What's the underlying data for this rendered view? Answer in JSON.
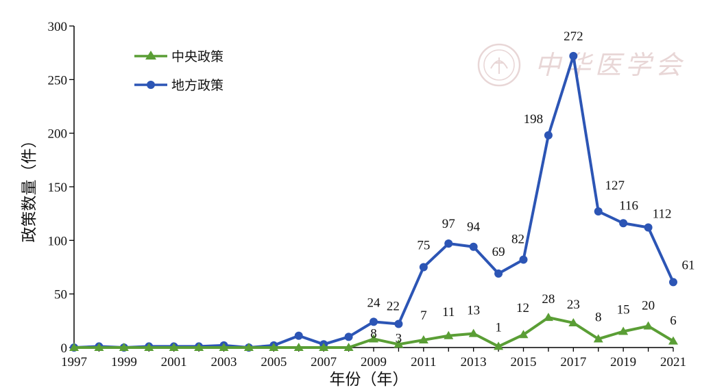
{
  "chart_data": {
    "type": "line",
    "xlabel": "年份（年）",
    "ylabel": "政策数量（件）",
    "x": [
      1997,
      1998,
      1999,
      2000,
      2001,
      2002,
      2003,
      2004,
      2005,
      2006,
      2007,
      2008,
      2009,
      2010,
      2011,
      2012,
      2013,
      2014,
      2015,
      2016,
      2017,
      2018,
      2019,
      2020,
      2021
    ],
    "xticks": [
      "1997",
      "1999",
      "2001",
      "2003",
      "2005",
      "2007",
      "2009",
      "2011",
      "2013",
      "2015",
      "2017",
      "2019",
      "2021"
    ],
    "ylim": [
      0,
      300
    ],
    "yticks": [
      "0",
      "50",
      "100",
      "150",
      "200",
      "250",
      "300"
    ],
    "grid": false,
    "legend_position": "top-left",
    "series": [
      {
        "name": "中央政策",
        "color": "#5a9e35",
        "marker": "triangle",
        "values": [
          0,
          0,
          0,
          0,
          0,
          0,
          0,
          0,
          0,
          0,
          0,
          0,
          8,
          3,
          7,
          11,
          13,
          1,
          12,
          28,
          23,
          8,
          15,
          20,
          6
        ],
        "labels": {
          "2009": "8",
          "2010": "3",
          "2011": "7",
          "2012": "11",
          "2013": "13",
          "2014": "1",
          "2015": "12",
          "2016": "28",
          "2017": "23",
          "2018": "8",
          "2019": "15",
          "2020": "20",
          "2021": "6"
        }
      },
      {
        "name": "地方政策",
        "color": "#2c55b5",
        "marker": "circle",
        "values": [
          0,
          1,
          0,
          1,
          1,
          1,
          2,
          0,
          2,
          11,
          3,
          10,
          24,
          22,
          75,
          97,
          94,
          69,
          82,
          198,
          272,
          127,
          116,
          112,
          61
        ],
        "labels": {
          "2009": "24",
          "2010": "22",
          "2011": "75",
          "2012": "97",
          "2013": "94",
          "2014": "69",
          "2015": "82",
          "2016": "198",
          "2017": "272",
          "2018": "127",
          "2019": "116",
          "2020": "112",
          "2021": "61"
        }
      }
    ],
    "watermark": {
      "text": "中华医学会",
      "icon": "society-seal-icon"
    }
  }
}
